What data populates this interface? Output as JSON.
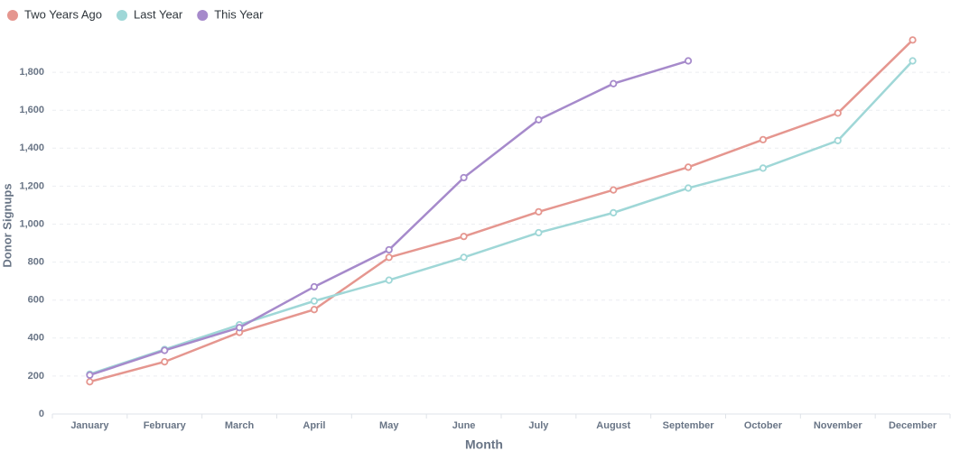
{
  "chart_data": {
    "type": "line",
    "xlabel": "Month",
    "ylabel": "Donor Signups",
    "categories": [
      "January",
      "February",
      "March",
      "April",
      "May",
      "June",
      "July",
      "August",
      "September",
      "October",
      "November",
      "December"
    ],
    "series": [
      {
        "name": "Two Years Ago",
        "color": "#e5968f",
        "values": [
          170,
          275,
          430,
          550,
          825,
          935,
          1065,
          1180,
          1300,
          1445,
          1585,
          1970
        ]
      },
      {
        "name": "Last Year",
        "color": "#9fd7d7",
        "values": [
          210,
          340,
          470,
          595,
          705,
          825,
          955,
          1060,
          1190,
          1295,
          1440,
          1860
        ]
      },
      {
        "name": "This Year",
        "color": "#a68acb",
        "values": [
          205,
          335,
          455,
          670,
          865,
          1245,
          1550,
          1740,
          1860,
          null,
          null,
          null
        ]
      }
    ],
    "ylim": [
      0,
      2000
    ],
    "yticks": [
      0,
      200,
      400,
      600,
      800,
      {
        "value": 1000,
        "label": "1,000"
      },
      {
        "value": 1200,
        "label": "1,200"
      },
      {
        "value": 1400,
        "label": "1,400"
      },
      {
        "value": 1600,
        "label": "1,600"
      },
      {
        "value": 1800,
        "label": "1,800"
      }
    ],
    "grid": true,
    "legend": "top-left"
  }
}
